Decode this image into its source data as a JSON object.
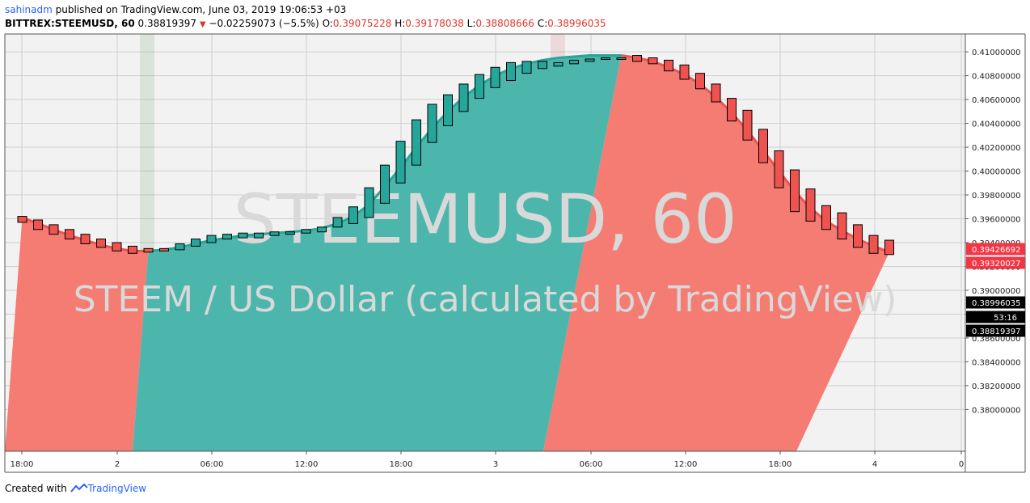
{
  "header": {
    "user": "sahinadm",
    "published": " published on TradingView.com, June 03, 2019 19:06:53 +03",
    "symbol": "BITTREX:STEEMUSD, 60",
    "last": "0.38819397",
    "change": "−0.02259073 (−5.5%)",
    "o_label": "O:",
    "o_value": "0.39075228",
    "h_label": "H:",
    "h_value": "0.39178038",
    "l_label": "L:",
    "l_value": "0.38808666",
    "c_label": "C:",
    "c_value": "0.38996035"
  },
  "footer": {
    "created": "Created with",
    "brand": "TradingView"
  },
  "watermark": {
    "line1": "STEEMUSD, 60",
    "line2": "STEEM / US Dollar (calculated by TradingView)"
  },
  "colors": {
    "up": "#26a69a",
    "down": "#ef5350",
    "upFill": "#4db6ac",
    "downFill": "#f47c73",
    "red_label": "#f23645",
    "black_label": "#000000"
  },
  "chart_data": {
    "type": "candlestick",
    "y_range": [
      0.3765,
      0.4115
    ],
    "y_ticks": [
      "0.41000000",
      "0.40800000",
      "0.40600000",
      "0.40400000",
      "0.40200000",
      "0.40000000",
      "0.39800000",
      "0.39600000",
      "0.39400000",
      "0.39200000",
      "0.39000000",
      "0.38800000",
      "0.38600000",
      "0.38400000",
      "0.38200000",
      "0.38000000"
    ],
    "x_ticks": [
      "18:00",
      "2",
      "06:00",
      "12:00",
      "18:00",
      "3",
      "06:00",
      "12:00",
      "18:00",
      "4",
      "0"
    ],
    "price_labels": [
      {
        "value": "0.39426692",
        "price": 0.39426692,
        "color": "red"
      },
      {
        "value": "0.39320027",
        "price": 0.39320027,
        "color": "red"
      },
      {
        "value": "0.38996035",
        "price": 0.38996035,
        "color": "black"
      },
      {
        "value": "53:16",
        "price": 0.3891,
        "color": "black"
      },
      {
        "value": "0.38819397",
        "price": 0.38819397,
        "color": "black"
      }
    ],
    "candles": [
      [
        0.3962,
        0.3957
      ],
      [
        0.3959,
        0.3951
      ],
      [
        0.3955,
        0.3947
      ],
      [
        0.3951,
        0.3943
      ],
      [
        0.3947,
        0.3939
      ],
      [
        0.3943,
        0.3936
      ],
      [
        0.394,
        0.3933
      ],
      [
        0.3937,
        0.3931
      ],
      [
        0.3935,
        0.3932
      ],
      [
        0.3935,
        0.3933
      ],
      [
        0.3934,
        0.3939
      ],
      [
        0.3937,
        0.3943
      ],
      [
        0.394,
        0.3946
      ],
      [
        0.3943,
        0.3947
      ],
      [
        0.3944,
        0.3948
      ],
      [
        0.3944,
        0.3948
      ],
      [
        0.3946,
        0.3949
      ],
      [
        0.3947,
        0.3949
      ],
      [
        0.3948,
        0.3951
      ],
      [
        0.3949,
        0.3953
      ],
      [
        0.3953,
        0.3961
      ],
      [
        0.3956,
        0.397
      ],
      [
        0.3961,
        0.3986
      ],
      [
        0.3973,
        0.4005
      ],
      [
        0.399,
        0.4025
      ],
      [
        0.4005,
        0.4043
      ],
      [
        0.4024,
        0.4056
      ],
      [
        0.4038,
        0.4064
      ],
      [
        0.405,
        0.4073
      ],
      [
        0.4061,
        0.4081
      ],
      [
        0.407,
        0.4087
      ],
      [
        0.4076,
        0.4091
      ],
      [
        0.4082,
        0.4092
      ],
      [
        0.4086,
        0.4092
      ],
      [
        0.4088,
        0.4091
      ],
      [
        0.409,
        0.4093
      ],
      [
        0.4092,
        0.4094
      ],
      [
        0.4094,
        0.4095
      ],
      [
        0.4095,
        0.4095
      ],
      [
        0.4097,
        0.4092
      ],
      [
        0.4095,
        0.409
      ],
      [
        0.4093,
        0.4084
      ],
      [
        0.4089,
        0.4077
      ],
      [
        0.4082,
        0.4069
      ],
      [
        0.4073,
        0.4058
      ],
      [
        0.4061,
        0.4042
      ],
      [
        0.4051,
        0.4026
      ],
      [
        0.4035,
        0.4007
      ],
      [
        0.4017,
        0.3986
      ],
      [
        0.4001,
        0.3966
      ],
      [
        0.3985,
        0.3958
      ],
      [
        0.3971,
        0.3951
      ],
      [
        0.3965,
        0.3943
      ],
      [
        0.3955,
        0.3936
      ],
      [
        0.3946,
        0.3931
      ],
      [
        0.3942,
        0.393
      ]
    ],
    "curve": [
      0.3961,
      0.3956,
      0.3951,
      0.3946,
      0.3942,
      0.3938,
      0.3935,
      0.3933,
      0.3933,
      0.3934,
      0.3936,
      0.3939,
      0.3942,
      0.3944,
      0.3946,
      0.3947,
      0.3948,
      0.3949,
      0.395,
      0.3952,
      0.3956,
      0.3962,
      0.3972,
      0.3987,
      0.4003,
      0.402,
      0.4036,
      0.405,
      0.4062,
      0.4072,
      0.408,
      0.4086,
      0.409,
      0.4093,
      0.4095,
      0.4096,
      0.4097,
      0.4097,
      0.4097,
      0.4095,
      0.4092,
      0.4087,
      0.4081,
      0.4073,
      0.4062,
      0.4049,
      0.4034,
      0.4017,
      0.4,
      0.3983,
      0.3969,
      0.3958,
      0.395,
      0.3943,
      0.3937,
      0.3932
    ]
  }
}
